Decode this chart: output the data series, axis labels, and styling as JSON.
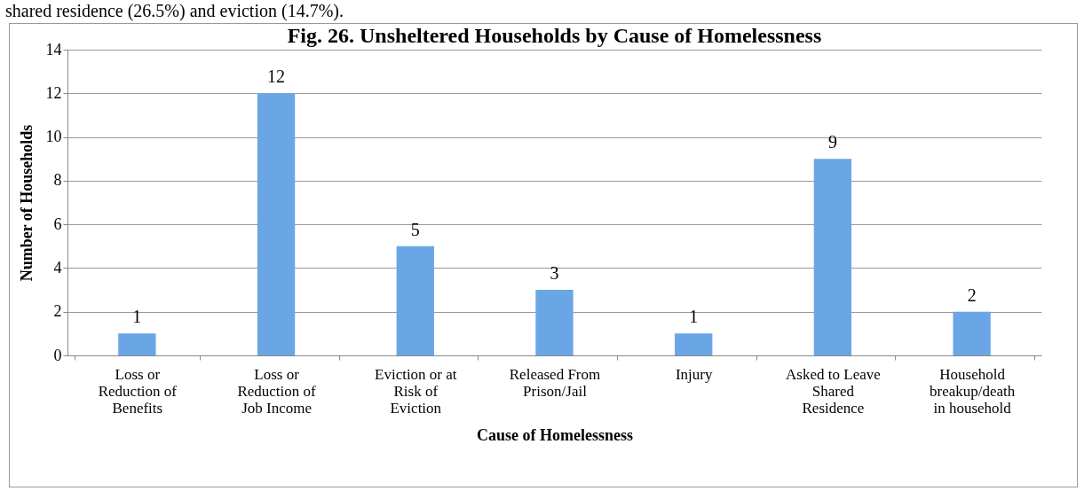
{
  "chart_data": {
    "type": "bar",
    "title": "Fig. 26. Unsheltered Households by Cause of Homelessness",
    "xlabel": "Cause of Homelessness",
    "ylabel": "Number of Households",
    "annotations": [
      "shared residence (26.5%) and eviction (14.7%)."
    ],
    "categories": [
      "Loss or Reduction of Benefits",
      "Loss or Reduction of Job Income",
      "Eviction or at Risk of Eviction",
      "Released From Prison/Jail",
      "Injury",
      "Asked to Leave Shared Residence",
      "Household breakup/death in household"
    ],
    "values": [
      1,
      12,
      5,
      3,
      1,
      9,
      2
    ],
    "color": "#6aa6e6",
    "ylim": [
      0,
      14
    ],
    "yticks": [
      0,
      2,
      4,
      6,
      8,
      10,
      12,
      14
    ],
    "grid": "y",
    "data_labels": true
  }
}
